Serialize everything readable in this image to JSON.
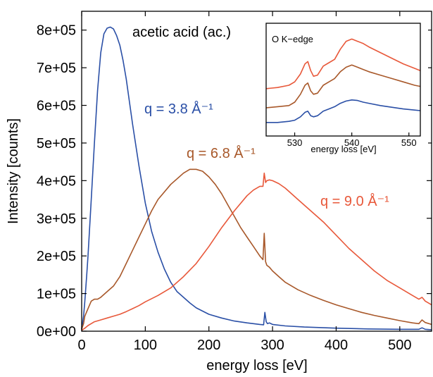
{
  "chart_data": [
    {
      "type": "line",
      "xlabel": "energy loss [eV]",
      "ylabel": "Intensity  [counts]",
      "xlim": [
        0,
        550
      ],
      "ylim": [
        0,
        850000
      ],
      "x_ticks": [
        0,
        100,
        200,
        300,
        400,
        500
      ],
      "x_tick_labels": [
        "0",
        "100",
        "200",
        "300",
        "400",
        "500"
      ],
      "y_ticks": [
        0,
        100000,
        200000,
        300000,
        400000,
        500000,
        600000,
        700000,
        800000
      ],
      "y_tick_labels": [
        "0e+00",
        "1e+05",
        "2e+05",
        "3e+05",
        "4e+05",
        "5e+05",
        "6e+05",
        "7e+05",
        "8e+05"
      ],
      "grid": false,
      "annotations": [
        {
          "text": "acetic acid (ac.)"
        },
        {
          "text": "q = 3.8 Å⁻¹",
          "color": "#2a4fa6"
        },
        {
          "text": "q = 6.8 Å⁻¹",
          "color": "#a8582a"
        },
        {
          "text": "q = 9.0 Å⁻¹",
          "color": "#e8583a"
        }
      ],
      "series": [
        {
          "color": "#2a4fa6",
          "x": [
            0,
            3,
            5,
            8,
            10,
            15,
            20,
            25,
            30,
            35,
            40,
            45,
            50,
            55,
            60,
            65,
            70,
            75,
            80,
            90,
            100,
            110,
            120,
            130,
            140,
            150,
            160,
            170,
            180,
            200,
            220,
            240,
            260,
            280,
            286,
            288,
            290,
            292,
            295,
            300,
            320,
            350,
            400,
            450,
            500,
            530,
            535,
            540,
            550
          ],
          "y": [
            5000,
            40000,
            80000,
            150000,
            200000,
            350000,
            500000,
            640000,
            740000,
            790000,
            805000,
            808000,
            803000,
            785000,
            760000,
            720000,
            670000,
            610000,
            550000,
            440000,
            340000,
            265000,
            210000,
            165000,
            130000,
            105000,
            90000,
            75000,
            62000,
            45000,
            35000,
            27000,
            22000,
            18000,
            17000,
            50000,
            25000,
            20000,
            22000,
            18000,
            14000,
            11000,
            8000,
            6000,
            5000,
            5000,
            9000,
            5000,
            4000
          ]
        },
        {
          "color": "#a8582a",
          "x": [
            0,
            3,
            5,
            10,
            15,
            20,
            25,
            30,
            40,
            50,
            60,
            70,
            80,
            90,
            100,
            110,
            120,
            140,
            160,
            170,
            180,
            190,
            200,
            210,
            220,
            230,
            240,
            250,
            260,
            270,
            280,
            285,
            287,
            289,
            291,
            295,
            300,
            310,
            320,
            340,
            360,
            380,
            400,
            420,
            440,
            460,
            480,
            500,
            520,
            530,
            535,
            540,
            550
          ],
          "y": [
            5000,
            20000,
            40000,
            60000,
            80000,
            85000,
            85000,
            90000,
            105000,
            120000,
            145000,
            180000,
            215000,
            250000,
            285000,
            320000,
            350000,
            390000,
            420000,
            430000,
            430000,
            425000,
            410000,
            390000,
            365000,
            335000,
            305000,
            275000,
            250000,
            225000,
            200000,
            190000,
            260000,
            185000,
            175000,
            170000,
            160000,
            145000,
            130000,
            110000,
            95000,
            82000,
            70000,
            60000,
            50000,
            42000,
            35000,
            28000,
            22000,
            20000,
            30000,
            23000,
            18000
          ]
        },
        {
          "color": "#e8583a",
          "x": [
            0,
            5,
            10,
            20,
            30,
            40,
            50,
            60,
            70,
            80,
            90,
            100,
            120,
            140,
            160,
            180,
            200,
            220,
            240,
            260,
            270,
            280,
            285,
            287,
            289,
            291,
            295,
            300,
            310,
            320,
            340,
            360,
            380,
            400,
            420,
            440,
            460,
            480,
            500,
            520,
            530,
            535,
            540,
            550
          ],
          "y": [
            2000,
            8000,
            15000,
            25000,
            30000,
            35000,
            40000,
            45000,
            52000,
            60000,
            68000,
            78000,
            95000,
            115000,
            145000,
            180000,
            225000,
            275000,
            320000,
            360000,
            375000,
            385000,
            385000,
            420000,
            395000,
            400000,
            402000,
            400000,
            392000,
            380000,
            350000,
            320000,
            290000,
            255000,
            220000,
            190000,
            160000,
            135000,
            115000,
            95000,
            85000,
            90000,
            80000,
            70000
          ]
        }
      ]
    },
    {
      "type": "line",
      "title": "O K−edge",
      "xlabel": "energy loss [eV]",
      "xlim": [
        525,
        552
      ],
      "ylim": [
        0,
        1
      ],
      "x_ticks": [
        530,
        540,
        550
      ],
      "x_tick_labels": [
        "530",
        "540",
        "550"
      ],
      "grid": false,
      "series": [
        {
          "color": "#e8583a",
          "x": [
            525,
            527,
            529,
            530,
            531,
            531.8,
            532.3,
            532.8,
            533.3,
            534,
            535,
            536,
            537,
            538,
            539,
            540,
            541,
            542,
            543,
            545,
            547,
            549,
            551,
            552
          ],
          "y": [
            0.42,
            0.43,
            0.45,
            0.48,
            0.55,
            0.64,
            0.66,
            0.58,
            0.53,
            0.54,
            0.62,
            0.65,
            0.68,
            0.77,
            0.84,
            0.86,
            0.84,
            0.82,
            0.79,
            0.74,
            0.69,
            0.64,
            0.6,
            0.58
          ]
        },
        {
          "color": "#a8582a",
          "x": [
            525,
            527,
            529,
            530,
            531,
            531.8,
            532.3,
            532.8,
            533.3,
            534,
            535,
            536,
            537,
            538,
            539,
            540,
            541,
            542,
            543,
            545,
            547,
            549,
            551,
            552
          ],
          "y": [
            0.25,
            0.26,
            0.27,
            0.3,
            0.37,
            0.45,
            0.47,
            0.4,
            0.37,
            0.38,
            0.45,
            0.48,
            0.51,
            0.57,
            0.61,
            0.63,
            0.61,
            0.59,
            0.57,
            0.54,
            0.51,
            0.48,
            0.45,
            0.44
          ]
        },
        {
          "color": "#2a4fa6",
          "x": [
            525,
            527,
            529,
            530,
            531,
            531.8,
            532.3,
            532.8,
            533.3,
            534,
            535,
            536,
            537,
            538,
            539,
            540,
            541,
            542,
            543,
            545,
            547,
            549,
            551,
            552
          ],
          "y": [
            0.12,
            0.12,
            0.13,
            0.14,
            0.17,
            0.21,
            0.22,
            0.18,
            0.17,
            0.18,
            0.22,
            0.24,
            0.26,
            0.29,
            0.31,
            0.32,
            0.315,
            0.3,
            0.29,
            0.27,
            0.255,
            0.24,
            0.23,
            0.225
          ]
        }
      ]
    }
  ]
}
